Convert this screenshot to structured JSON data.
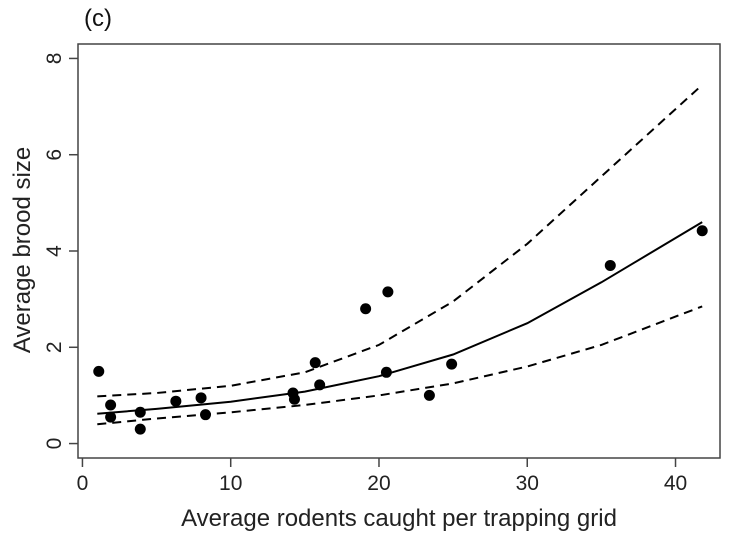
{
  "chart_data": {
    "type": "scatter",
    "panel_label": "(c)",
    "title": "",
    "xlabel": "Average rodents caught per trapping grid",
    "ylabel": "Average brood size",
    "xlim": [
      -0.3,
      43
    ],
    "ylim": [
      -0.3,
      8.3
    ],
    "xticks": [
      0,
      10,
      20,
      30,
      40
    ],
    "yticks": [
      0,
      2,
      4,
      6,
      8
    ],
    "grid": false,
    "points": [
      {
        "x": 1.1,
        "y": 1.5
      },
      {
        "x": 1.9,
        "y": 0.8
      },
      {
        "x": 1.9,
        "y": 0.55
      },
      {
        "x": 3.9,
        "y": 0.65
      },
      {
        "x": 3.9,
        "y": 0.3
      },
      {
        "x": 6.3,
        "y": 0.88
      },
      {
        "x": 8.0,
        "y": 0.95
      },
      {
        "x": 8.3,
        "y": 0.6
      },
      {
        "x": 14.2,
        "y": 1.05
      },
      {
        "x": 14.3,
        "y": 0.92
      },
      {
        "x": 15.7,
        "y": 1.68
      },
      {
        "x": 16.0,
        "y": 1.22
      },
      {
        "x": 19.1,
        "y": 2.8
      },
      {
        "x": 20.6,
        "y": 3.15
      },
      {
        "x": 20.5,
        "y": 1.48
      },
      {
        "x": 23.4,
        "y": 1.0
      },
      {
        "x": 24.9,
        "y": 1.65
      },
      {
        "x": 35.6,
        "y": 3.7
      },
      {
        "x": 41.8,
        "y": 4.42
      }
    ],
    "fit": {
      "x": [
        1,
        5,
        10,
        15,
        20,
        25,
        30,
        35,
        41.8
      ],
      "y": [
        0.62,
        0.72,
        0.87,
        1.08,
        1.4,
        1.85,
        2.5,
        3.35,
        4.6
      ]
    },
    "ci_upper": {
      "x": [
        1,
        5,
        10,
        15,
        20,
        25,
        30,
        35,
        41.8
      ],
      "y": [
        0.98,
        1.05,
        1.2,
        1.48,
        2.05,
        2.95,
        4.15,
        5.55,
        7.45
      ]
    },
    "ci_lower": {
      "x": [
        1,
        5,
        10,
        15,
        20,
        25,
        30,
        35,
        41.8
      ],
      "y": [
        0.4,
        0.52,
        0.65,
        0.8,
        1.0,
        1.25,
        1.6,
        2.05,
        2.85
      ]
    },
    "colors": {
      "points": "#000000",
      "lines": "#000000",
      "axes": "#444444"
    }
  }
}
